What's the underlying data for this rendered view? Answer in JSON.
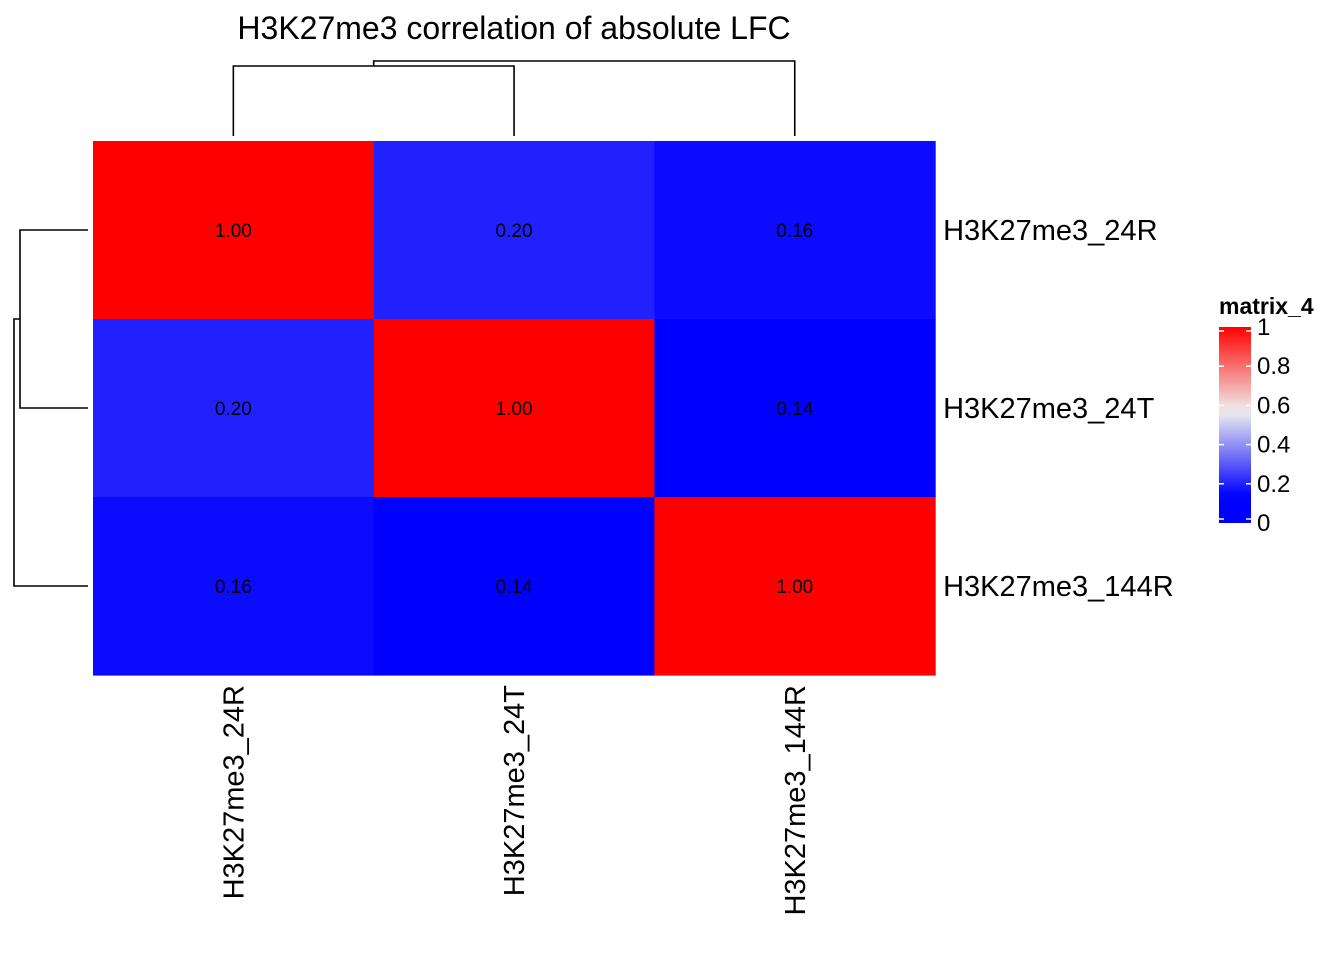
{
  "chart_data": {
    "type": "heatmap",
    "title": "H3K27me3 correlation of absolute LFC",
    "rows": [
      "H3K27me3_24R",
      "H3K27me3_24T",
      "H3K27me3_144R"
    ],
    "columns": [
      "H3K27me3_24R",
      "H3K27me3_24T",
      "H3K27me3_144R"
    ],
    "values": [
      [
        1.0,
        0.2,
        0.16
      ],
      [
        0.2,
        1.0,
        0.14
      ],
      [
        0.16,
        0.14,
        1.0
      ]
    ],
    "cell_labels": [
      [
        "1.00",
        "0.20",
        "0.16"
      ],
      [
        "0.20",
        "1.00",
        "0.14"
      ],
      [
        "0.16",
        "0.14",
        "1.00"
      ]
    ],
    "color_scale": {
      "stops": [
        0.14,
        0.57,
        1.0
      ],
      "colors": [
        "#0000ff",
        "#f0f0f0",
        "#ff0000"
      ]
    },
    "legend": {
      "title": "matrix_4",
      "position": "right",
      "ticks": [
        "1",
        "0.8",
        "0.6",
        "0.4",
        "0.2",
        "0"
      ],
      "tick_values": [
        1.0,
        0.8,
        0.6,
        0.4,
        0.2,
        0.0
      ]
    },
    "dendrogram": {
      "rows": "left",
      "columns": "top"
    }
  }
}
